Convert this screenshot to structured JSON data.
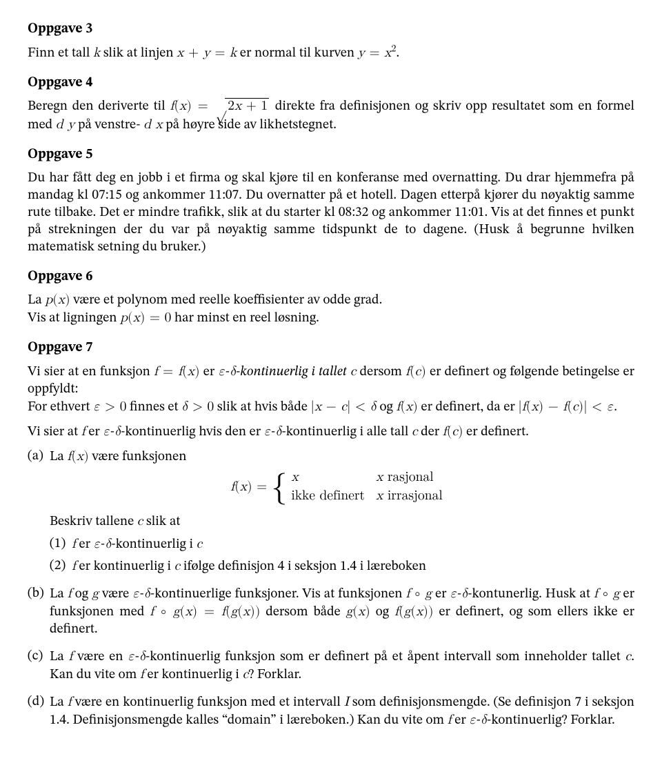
{
  "oppgave3": {
    "title": "Oppgave 3",
    "text": "Finn et tall k slik at linjen x + y = k er normal til kurven y = x²."
  },
  "oppgave4": {
    "title": "Oppgave 4",
    "text": "Beregn den deriverte til f(x) = √(2x + 1) direkte fra definisjonen og skriv opp resultatet som en formel med dy på venstre- dx på høyre side av likhetstegnet."
  },
  "oppgave5": {
    "title": "Oppgave 5",
    "text": "Du har fått deg en jobb i et firma og skal kjøre til en konferanse med overnatting. Du drar hjemmefra på mandag kl 07:15 og ankommer 11:07. Du overnatter på et hotell. Dagen etterpå kjører du nøyaktig samme rute tilbake. Det er mindre trafikk, slik at du starter kl 08:32 og ankommer 11:01. Vis at det finnes et punkt på strekningen der du var på nøyaktig samme tidspunkt de to dagene. (Husk å begrunne hvilken matematisk setning du bruker.)"
  },
  "oppgave6": {
    "title": "Oppgave 6",
    "line1": "La p(x) være et polynom med reelle koeffisienter av odde grad.",
    "line2": "Vis at ligningen p(x) = 0 har minst en reel løsning."
  },
  "oppgave7": {
    "title": "Oppgave 7",
    "p1": "Vi sier at en funksjon f = f(x) er ε-δ-kontinuerlig i tallet c dersom f(c) er definert og følgende betingelse er oppfyldt:",
    "p1b": "For ethvert ε > 0 finnes et δ > 0 slik at hvis både |x − c| < δ og f(x) er definert, da er |f(x) − f(c)| < ε.",
    "p2": "Vi sier at f er ε-δ-kontinuerlig hvis den er ε-δ-kontinuerlig i alle tall c der f(c) er definert.",
    "a_intro": "La f(x) være funksjonen",
    "a_after": "Beskriv tallene c slik at",
    "piecewise": {
      "lhs": "f(x) =",
      "r1v": "x",
      "r1c": "x rasjonal",
      "r2v": "ikke definert",
      "r2c": "x irrasjonal"
    },
    "a1": "f er ε-δ-kontinuerlig i c",
    "a2": "f er kontinuerlig i c ifølge definisjon 4 i seksjon 1.4 i læreboken",
    "b": "La f og g være ε-δ-kontinuerlige funksjoner. Vis at funksjonen f ∘ g er ε-δ-kontunerlig. Husk at f ∘ g er funksjonen med f ∘ g(x) = f(g(x)) dersom både g(x) og f(g(x)) er definert, og som ellers ikke er definert.",
    "c": "La f være en ε-δ-kontinuerlig funksjon som er definert på et åpent intervall som inneholder tallet c. Kan du vite om f er kontinuerlig i c? Forklar.",
    "d": "La f være en kontinuerlig funksjon med et intervall I som definisjonsmengde. (Se definisjon 7 i seksjon 1.4. Definisjonsmengde kalles \"domain\" i læreboken.) Kan du vite om f er ε-δ-kontinuerlig? Forklar."
  },
  "labels": {
    "a": "(a)",
    "b": "(b)",
    "c": "(c)",
    "d": "(d)",
    "n1": "(1)",
    "n2": "(2)"
  }
}
